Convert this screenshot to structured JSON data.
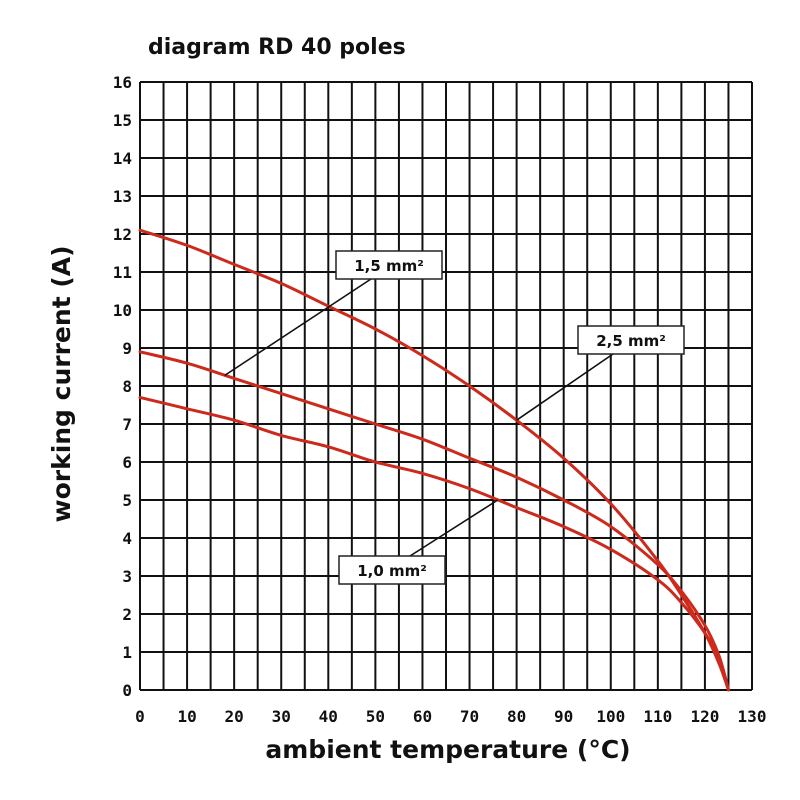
{
  "chart_data": {
    "type": "line",
    "title": "diagram RD 40 poles",
    "xlabel": "ambient temperature (°C)",
    "ylabel": "working current (A)",
    "xlim": [
      0,
      130
    ],
    "ylim": [
      0,
      16
    ],
    "xticks": [
      "0",
      "10",
      "20",
      "30",
      "40",
      "50",
      "60",
      "70",
      "80",
      "90",
      "100",
      "110",
      "120",
      "130"
    ],
    "yticks": [
      "0",
      "1",
      "2",
      "3",
      "4",
      "5",
      "6",
      "7",
      "8",
      "9",
      "10",
      "11",
      "12",
      "13",
      "14",
      "15",
      "16"
    ],
    "grid": true,
    "curve_color": "#cc2a1c",
    "series": [
      {
        "name": "2,5 mm²",
        "x": [
          0,
          10,
          20,
          30,
          40,
          50,
          60,
          70,
          80,
          90,
          100,
          110,
          115,
          120,
          123,
          125
        ],
        "y": [
          12.1,
          11.7,
          11.2,
          10.7,
          10.1,
          9.5,
          8.8,
          8.0,
          7.1,
          6.1,
          4.9,
          3.4,
          2.5,
          1.5,
          0.7,
          0.0
        ]
      },
      {
        "name": "1,5 mm²",
        "x": [
          0,
          10,
          20,
          30,
          40,
          50,
          60,
          70,
          80,
          90,
          100,
          110,
          115,
          120,
          123,
          125
        ],
        "y": [
          8.9,
          8.6,
          8.2,
          7.8,
          7.4,
          7.0,
          6.6,
          6.1,
          5.6,
          5.0,
          4.3,
          3.3,
          2.6,
          1.7,
          0.9,
          0.0
        ]
      },
      {
        "name": "1,0 mm²",
        "x": [
          0,
          10,
          20,
          30,
          40,
          50,
          60,
          70,
          80,
          90,
          100,
          110,
          115,
          120,
          123,
          125
        ],
        "y": [
          7.7,
          7.4,
          7.1,
          6.7,
          6.4,
          6.0,
          5.7,
          5.3,
          4.8,
          4.3,
          3.7,
          2.9,
          2.3,
          1.5,
          0.8,
          0.0
        ]
      }
    ],
    "annotations": [
      {
        "label": "1,5 mm²",
        "series": 1,
        "at_x": 18,
        "box_x": 50
      },
      {
        "label": "2,5 mm²",
        "series": 0,
        "at_x": 80,
        "box_x": 118
      },
      {
        "label": "1,0 mm²",
        "series": 2,
        "at_x": 76,
        "box_x": 55
      }
    ]
  }
}
